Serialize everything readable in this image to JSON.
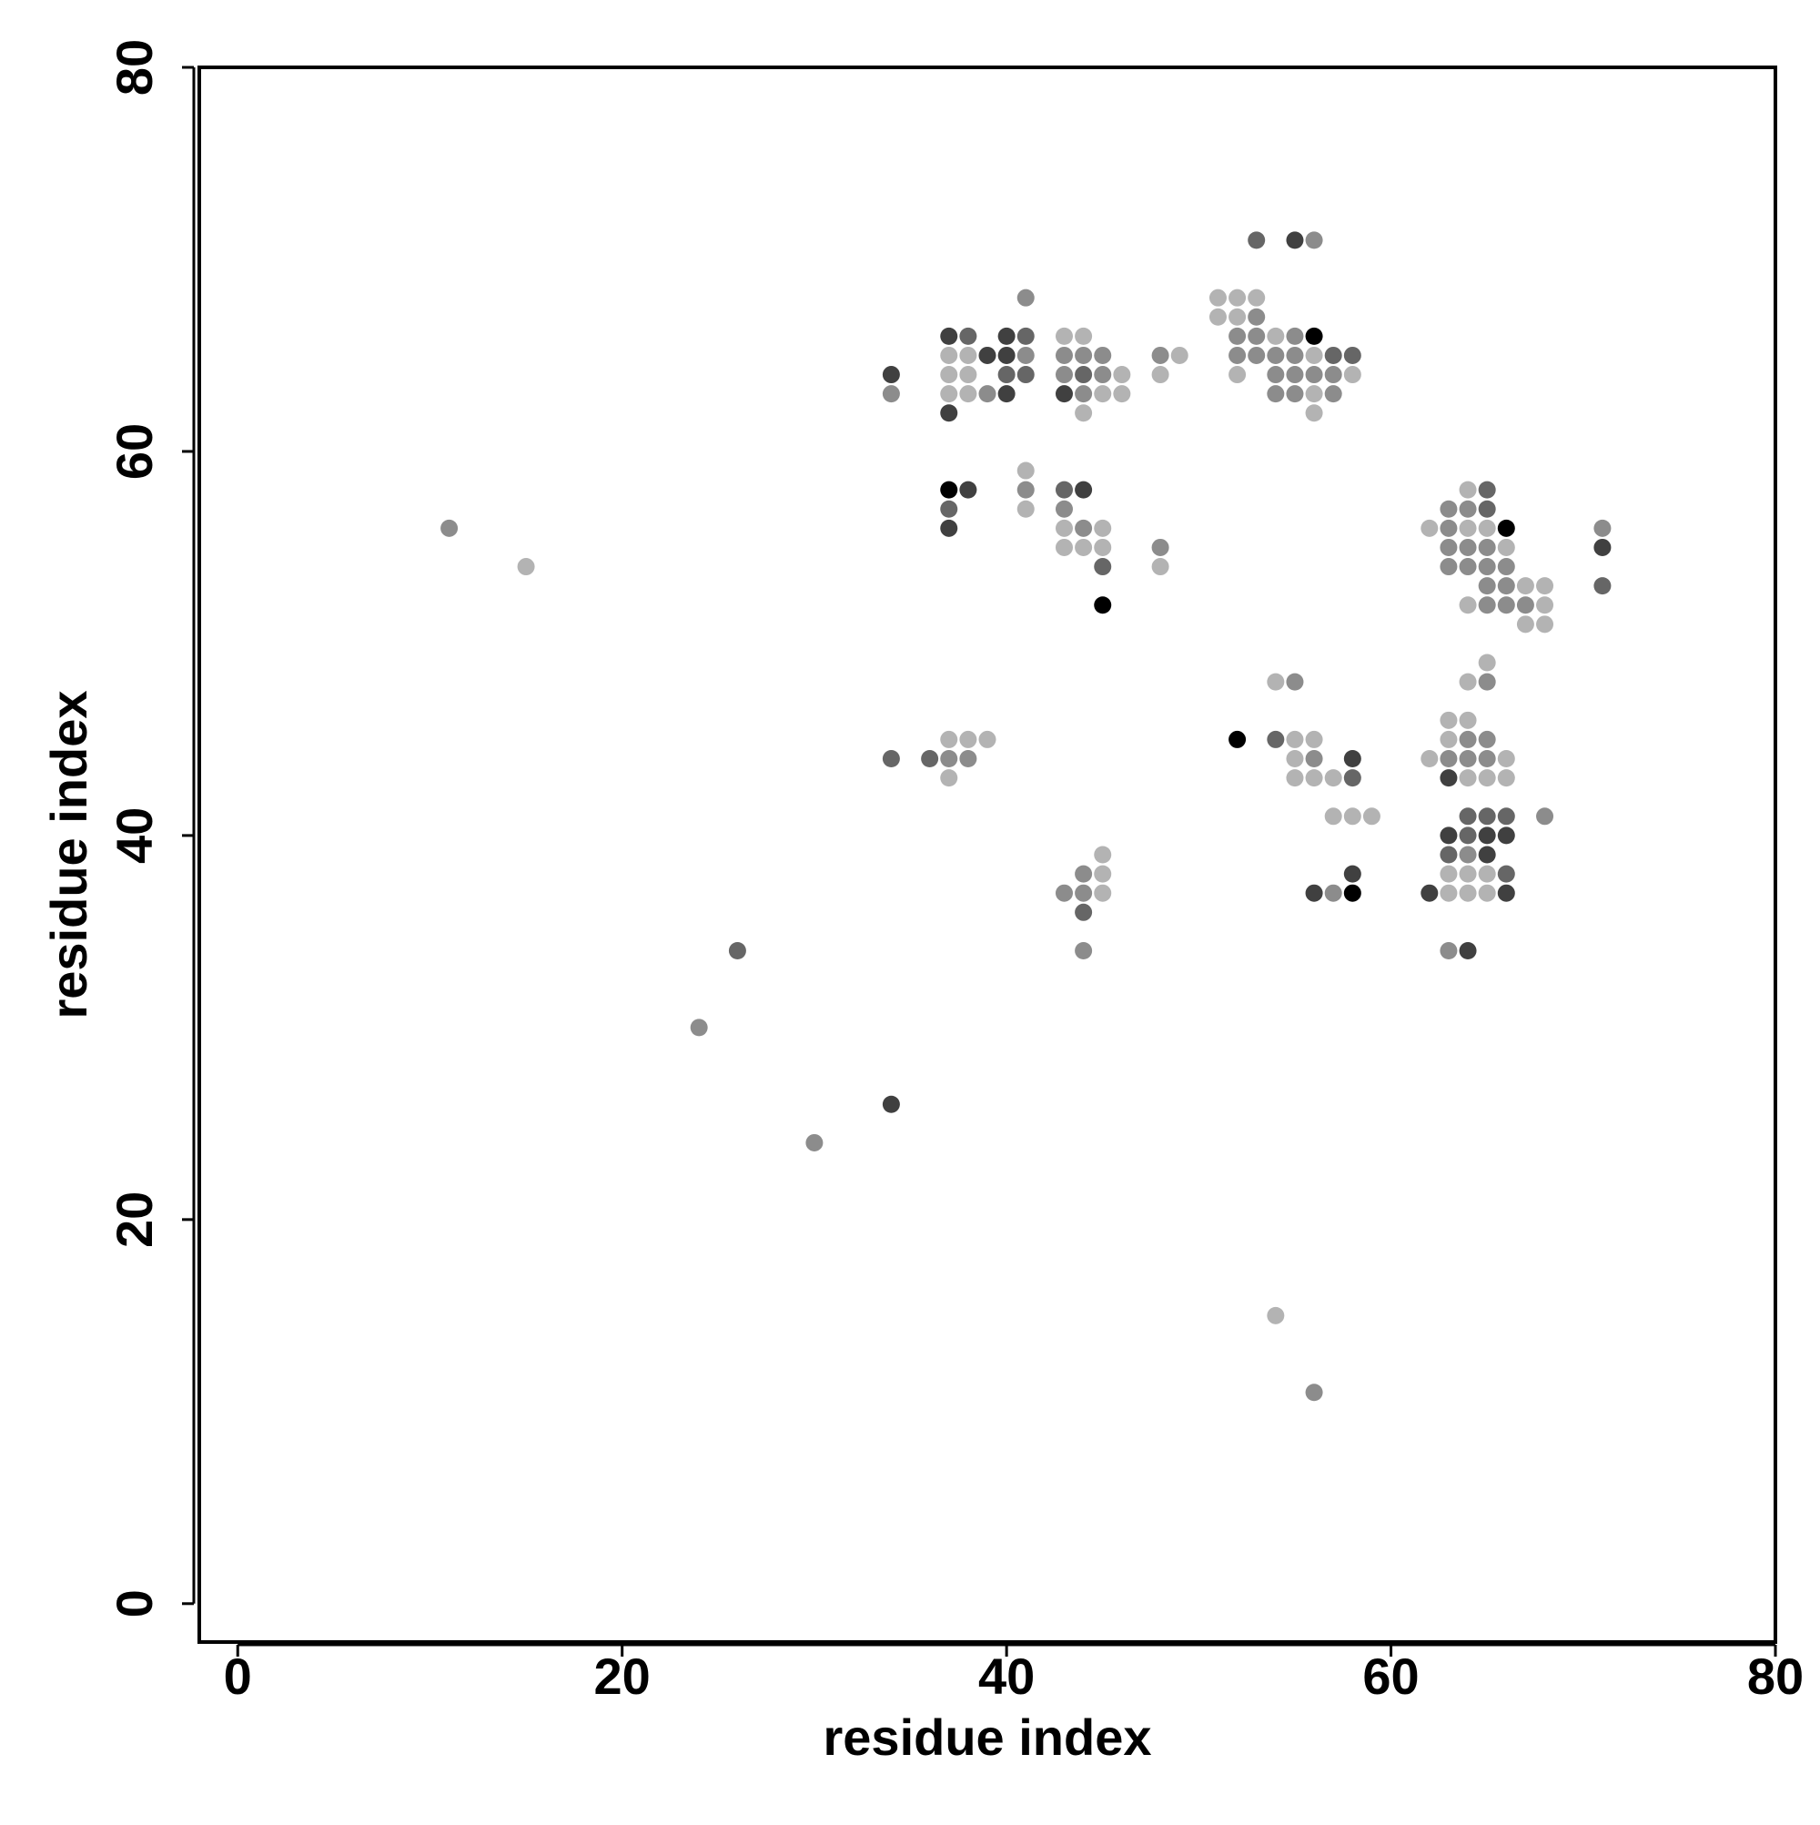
{
  "chart_data": {
    "type": "scatter",
    "x_label": "residue index",
    "y_label": "residue index",
    "xlim": [
      -2,
      80
    ],
    "ylim": [
      -2,
      80
    ],
    "xticks": [
      0,
      20,
      40,
      60,
      80
    ],
    "yticks": [
      0,
      20,
      40,
      60,
      80
    ],
    "x": [
      11,
      15,
      24,
      26,
      30,
      34,
      34,
      34,
      34,
      36,
      37,
      37,
      37,
      37,
      37,
      37,
      37,
      37,
      37,
      37,
      37,
      38,
      38,
      38,
      38,
      38,
      38,
      38,
      39,
      39,
      39,
      40,
      40,
      40,
      40,
      41,
      41,
      41,
      41,
      41,
      41,
      41,
      43,
      43,
      43,
      43,
      43,
      43,
      43,
      43,
      43,
      44,
      44,
      44,
      44,
      44,
      44,
      44,
      44,
      44,
      44,
      44,
      44,
      45,
      45,
      45,
      45,
      45,
      45,
      45,
      45,
      45,
      45,
      46,
      46,
      48,
      48,
      48,
      48,
      49,
      51,
      51,
      52,
      52,
      52,
      52,
      52,
      52,
      53,
      53,
      53,
      53,
      53,
      54,
      54,
      54,
      54,
      54,
      54,
      54,
      55,
      55,
      55,
      55,
      55,
      55,
      55,
      55,
      55,
      56,
      56,
      56,
      56,
      56,
      56,
      56,
      56,
      56,
      56,
      56,
      57,
      57,
      57,
      57,
      57,
      57,
      58,
      58,
      58,
      58,
      58,
      58,
      58,
      59,
      62,
      62,
      62,
      63,
      63,
      63,
      63,
      63,
      63,
      63,
      63,
      63,
      63,
      63,
      63,
      63,
      64,
      64,
      64,
      64,
      64,
      64,
      64,
      64,
      64,
      64,
      64,
      64,
      64,
      64,
      64,
      64,
      64,
      65,
      65,
      65,
      65,
      65,
      65,
      65,
      65,
      65,
      65,
      65,
      65,
      65,
      65,
      65,
      65,
      65,
      66,
      66,
      66,
      66,
      66,
      66,
      66,
      66,
      66,
      66,
      66,
      67,
      67,
      67,
      68,
      68,
      68,
      68,
      71,
      71,
      71
    ],
    "series": [
      {
        "values": [
          56,
          54,
          30,
          34,
          24,
          26,
          64,
          63,
          44,
          44,
          66,
          65,
          64,
          63,
          62,
          58,
          57,
          56,
          45,
          44,
          43,
          66,
          65,
          64,
          63,
          58,
          45,
          44,
          65,
          63,
          45,
          66,
          65,
          64,
          63,
          68,
          66,
          65,
          64,
          59,
          58,
          57,
          66,
          65,
          64,
          63,
          58,
          57,
          56,
          55,
          37,
          66,
          65,
          64,
          63,
          62,
          58,
          56,
          55,
          38,
          37,
          36,
          34,
          65,
          64,
          63,
          56,
          55,
          54,
          52,
          39,
          38,
          37,
          64,
          63,
          65,
          64,
          55,
          54,
          65,
          68,
          67,
          68,
          67,
          66,
          65,
          64,
          45,
          71,
          68,
          67,
          66,
          65,
          66,
          65,
          64,
          63,
          48,
          45,
          15,
          71,
          66,
          65,
          64,
          63,
          48,
          45,
          44,
          43,
          71,
          66,
          65,
          64,
          63,
          62,
          45,
          44,
          43,
          37,
          11,
          65,
          64,
          63,
          43,
          41,
          37,
          65,
          64,
          44,
          43,
          41,
          38,
          37,
          41,
          56,
          44,
          37,
          57,
          56,
          55,
          54,
          46,
          45,
          44,
          43,
          40,
          39,
          38,
          37,
          34,
          58,
          57,
          56,
          55,
          54,
          52,
          48,
          46,
          45,
          44,
          43,
          41,
          40,
          39,
          38,
          37,
          34,
          58,
          57,
          56,
          55,
          54,
          53,
          52,
          49,
          48,
          45,
          44,
          43,
          41,
          40,
          39,
          38,
          37,
          56,
          55,
          54,
          53,
          52,
          44,
          43,
          41,
          40,
          38,
          37,
          53,
          52,
          51,
          53,
          52,
          51,
          41,
          56,
          55,
          53
        ],
        "colors": [
          "#8c8c8c",
          "#b3b3b3",
          "#8c8c8c",
          "#666666",
          "#8c8c8c",
          "#404040",
          "#404040",
          "#8c8c8c",
          "#666666",
          "#666666",
          "#404040",
          "#b3b3b3",
          "#b3b3b3",
          "#b3b3b3",
          "#404040",
          "#000000",
          "#666666",
          "#404040",
          "#b3b3b3",
          "#8c8c8c",
          "#b3b3b3",
          "#666666",
          "#b3b3b3",
          "#b3b3b3",
          "#b3b3b3",
          "#404040",
          "#b3b3b3",
          "#8c8c8c",
          "#404040",
          "#8c8c8c",
          "#b3b3b3",
          "#404040",
          "#404040",
          "#666666",
          "#404040",
          "#8c8c8c",
          "#666666",
          "#8c8c8c",
          "#666666",
          "#b3b3b3",
          "#8c8c8c",
          "#b3b3b3",
          "#b3b3b3",
          "#8c8c8c",
          "#8c8c8c",
          "#404040",
          "#666666",
          "#8c8c8c",
          "#b3b3b3",
          "#b3b3b3",
          "#8c8c8c",
          "#b3b3b3",
          "#8c8c8c",
          "#666666",
          "#8c8c8c",
          "#b3b3b3",
          "#404040",
          "#8c8c8c",
          "#b3b3b3",
          "#8c8c8c",
          "#8c8c8c",
          "#666666",
          "#8c8c8c",
          "#8c8c8c",
          "#8c8c8c",
          "#b3b3b3",
          "#b3b3b3",
          "#b3b3b3",
          "#666666",
          "#000000",
          "#b3b3b3",
          "#b3b3b3",
          "#b3b3b3",
          "#b3b3b3",
          "#b3b3b3",
          "#8c8c8c",
          "#b3b3b3",
          "#8c8c8c",
          "#b3b3b3",
          "#b3b3b3",
          "#b3b3b3",
          "#b3b3b3",
          "#b3b3b3",
          "#b3b3b3",
          "#8c8c8c",
          "#8c8c8c",
          "#b3b3b3",
          "#000000",
          "#666666",
          "#b3b3b3",
          "#8c8c8c",
          "#8c8c8c",
          "#8c8c8c",
          "#b3b3b3",
          "#8c8c8c",
          "#8c8c8c",
          "#8c8c8c",
          "#b3b3b3",
          "#666666",
          "#b3b3b3",
          "#404040",
          "#8c8c8c",
          "#8c8c8c",
          "#8c8c8c",
          "#8c8c8c",
          "#8c8c8c",
          "#b3b3b3",
          "#b3b3b3",
          "#b3b3b3",
          "#8c8c8c",
          "#000000",
          "#b3b3b3",
          "#8c8c8c",
          "#b3b3b3",
          "#b3b3b3",
          "#b3b3b3",
          "#8c8c8c",
          "#b3b3b3",
          "#404040",
          "#8c8c8c",
          "#666666",
          "#8c8c8c",
          "#8c8c8c",
          "#b3b3b3",
          "#b3b3b3",
          "#8c8c8c",
          "#666666",
          "#b3b3b3",
          "#404040",
          "#666666",
          "#b3b3b3",
          "#404040",
          "#000000",
          "#b3b3b3",
          "#b3b3b3",
          "#b3b3b3",
          "#404040",
          "#8c8c8c",
          "#8c8c8c",
          "#8c8c8c",
          "#8c8c8c",
          "#b3b3b3",
          "#b3b3b3",
          "#8c8c8c",
          "#404040",
          "#404040",
          "#666666",
          "#b3b3b3",
          "#b3b3b3",
          "#8c8c8c",
          "#b3b3b3",
          "#8c8c8c",
          "#b3b3b3",
          "#8c8c8c",
          "#8c8c8c",
          "#b3b3b3",
          "#b3b3b3",
          "#b3b3b3",
          "#8c8c8c",
          "#8c8c8c",
          "#b3b3b3",
          "#666666",
          "#666666",
          "#8c8c8c",
          "#b3b3b3",
          "#b3b3b3",
          "#404040",
          "#666666",
          "#666666",
          "#b3b3b3",
          "#8c8c8c",
          "#8c8c8c",
          "#8c8c8c",
          "#8c8c8c",
          "#b3b3b3",
          "#8c8c8c",
          "#8c8c8c",
          "#8c8c8c",
          "#b3b3b3",
          "#666666",
          "#404040",
          "#404040",
          "#b3b3b3",
          "#b3b3b3",
          "#000000",
          "#b3b3b3",
          "#8c8c8c",
          "#8c8c8c",
          "#8c8c8c",
          "#b3b3b3",
          "#b3b3b3",
          "#666666",
          "#404040",
          "#666666",
          "#404040",
          "#b3b3b3",
          "#8c8c8c",
          "#b3b3b3",
          "#b3b3b3",
          "#b3b3b3",
          "#b3b3b3",
          "#8c8c8c",
          "#8c8c8c",
          "#404040",
          "#666666"
        ]
      }
    ]
  }
}
